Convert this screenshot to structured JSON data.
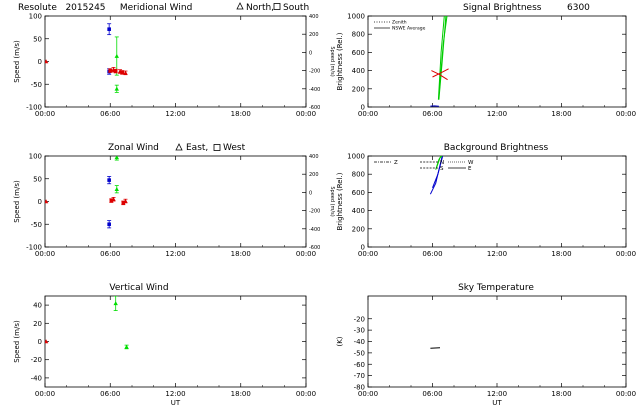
{
  "page_title": {
    "station": "Resolute",
    "date": "2015245",
    "sep": "   ",
    "subtitle": "Meridional Wind",
    "legend_a": "North,",
    "legend_b": "South"
  },
  "chart_data": [
    {
      "id": "meridional",
      "type": "scatter",
      "title": "",
      "xlabel": "",
      "ylabel": "Speed (m/s)",
      "xlim": [
        0,
        24
      ],
      "ylim": [
        -100,
        100
      ],
      "x_ticks": [
        "00:00",
        "06:00",
        "12:00",
        "18:00",
        "00:00"
      ],
      "y_ticks": [
        -100,
        -50,
        0,
        50,
        100
      ],
      "right_axis": {
        "label": "Speed (m/s)",
        "ticks": [
          -600,
          -400,
          -200,
          0,
          200,
          400
        ],
        "lim": [
          -600,
          400
        ]
      },
      "series": [
        {
          "color": "#0000cc",
          "marker": "square",
          "points": [
            [
              5.9,
              71,
              12
            ],
            [
              5.9,
              -22,
              6
            ]
          ]
        },
        {
          "color": "#00dd00",
          "marker": "triangle",
          "points": [
            [
              6.6,
              12,
              42
            ],
            [
              6.6,
              -60,
              8
            ]
          ]
        },
        {
          "color": "#dd0000",
          "marker": "triangle",
          "points": [
            [
              6.3,
              -18,
              5
            ],
            [
              6.9,
              -22,
              4
            ],
            [
              7.4,
              -25,
              4
            ]
          ]
        },
        {
          "color": "#dd0000",
          "marker": "square",
          "points": [
            [
              6.0,
              -20,
              4
            ],
            [
              6.5,
              -21,
              4
            ],
            [
              7.1,
              -24,
              4
            ]
          ]
        },
        {
          "color": "#dd0000",
          "marker": "triangle",
          "points": [
            [
              0.1,
              0,
              0
            ]
          ]
        }
      ]
    },
    {
      "id": "zonal",
      "type": "scatter",
      "title": "Zonal Wind",
      "legend_a": "East,",
      "legend_b": "West",
      "xlabel": "",
      "ylabel": "Speed (m/s)",
      "xlim": [
        0,
        24
      ],
      "ylim": [
        -100,
        100
      ],
      "x_ticks": [
        "00:00",
        "06:00",
        "12:00",
        "18:00",
        "00:00"
      ],
      "y_ticks": [
        -100,
        -50,
        0,
        50,
        100
      ],
      "right_axis": {
        "label": "Speed (m/s)",
        "ticks": [
          -600,
          -400,
          -200,
          0,
          200,
          400
        ],
        "lim": [
          -600,
          400
        ]
      },
      "series": [
        {
          "color": "#0000cc",
          "marker": "square",
          "points": [
            [
              5.9,
              47,
              8
            ],
            [
              5.9,
              -50,
              8
            ]
          ]
        },
        {
          "color": "#00dd00",
          "marker": "triangle",
          "points": [
            [
              6.6,
              97,
              6
            ],
            [
              6.6,
              27,
              8
            ]
          ]
        },
        {
          "color": "#dd0000",
          "marker": "triangle",
          "points": [
            [
              6.3,
              5,
              4
            ],
            [
              7.4,
              1,
              4
            ]
          ]
        },
        {
          "color": "#dd0000",
          "marker": "square",
          "points": [
            [
              6.1,
              2,
              4
            ],
            [
              7.2,
              -3,
              4
            ]
          ]
        },
        {
          "color": "#dd0000",
          "marker": "triangle",
          "points": [
            [
              0.1,
              0,
              0
            ]
          ]
        }
      ]
    },
    {
      "id": "vertical",
      "type": "scatter",
      "title": "Vertical Wind",
      "xlabel": "UT",
      "ylabel": "Speed (m/s)",
      "xlim": [
        0,
        24
      ],
      "ylim": [
        -50,
        50
      ],
      "x_ticks": [
        "00:00",
        "06:00",
        "12:00",
        "18:00",
        "00:00"
      ],
      "y_ticks": [
        -40,
        -20,
        0,
        20,
        40
      ],
      "series": [
        {
          "color": "#00dd00",
          "marker": "triangle",
          "points": [
            [
              6.5,
              42,
              8
            ],
            [
              7.5,
              -6,
              2
            ]
          ]
        },
        {
          "color": "#dd0000",
          "marker": "triangle",
          "points": [
            [
              0.1,
              0,
              0
            ]
          ]
        }
      ]
    },
    {
      "id": "signal",
      "type": "line",
      "title": "Signal Brightness",
      "title_right": "6300",
      "xlabel": "",
      "ylabel": "Brightness (Rel.)",
      "xlim": [
        0,
        24
      ],
      "ylim": [
        0,
        1000
      ],
      "x_ticks": [
        "00:00",
        "06:00",
        "12:00",
        "18:00",
        "00:00"
      ],
      "y_ticks": [
        0,
        200,
        400,
        600,
        800,
        1000
      ],
      "legend": [
        {
          "label": "Zenith",
          "style": "dotted"
        },
        {
          "label": "NSWE Average",
          "style": "solid"
        }
      ],
      "series": [
        {
          "color": "#00cc00",
          "points": [
            [
              6.55,
              80
            ],
            [
              6.8,
              600
            ],
            [
              7.1,
              1000
            ]
          ]
        },
        {
          "color": "#00cc00",
          "points": [
            [
              6.6,
              80
            ],
            [
              6.9,
              500
            ],
            [
              7.25,
              1000
            ]
          ]
        },
        {
          "color": "#00cc00",
          "points": [
            [
              6.65,
              200
            ],
            [
              7.0,
              700
            ],
            [
              7.35,
              1000
            ]
          ]
        },
        {
          "color": "#dd0000",
          "points": [
            [
              5.9,
              400
            ],
            [
              6.6,
              360
            ],
            [
              7.4,
              300
            ]
          ]
        },
        {
          "color": "#dd0000",
          "points": [
            [
              6.0,
              330
            ],
            [
              6.7,
              370
            ],
            [
              7.5,
              420
            ]
          ]
        },
        {
          "color": "#0000cc",
          "points": [
            [
              5.8,
              10
            ],
            [
              6.2,
              12
            ],
            [
              6.6,
              8
            ]
          ]
        }
      ]
    },
    {
      "id": "background",
      "type": "line",
      "title": "Background Brightness",
      "xlabel": "",
      "ylabel": "Brightness (Rel.)",
      "xlim": [
        0,
        24
      ],
      "ylim": [
        0,
        1000
      ],
      "x_ticks": [
        "00:00",
        "06:00",
        "12:00",
        "18:00",
        "00:00"
      ],
      "y_ticks": [
        0,
        200,
        400,
        600,
        800,
        1000
      ],
      "legend": [
        {
          "label": "Z",
          "style": "dashdot"
        },
        {
          "label": "N",
          "style": "dashed"
        },
        {
          "label": "S",
          "style": "dashed"
        },
        {
          "label": "W",
          "style": "dotted"
        },
        {
          "label": "E",
          "style": "solid"
        }
      ],
      "series": [
        {
          "color": "#0000cc",
          "points": [
            [
              5.8,
              580
            ],
            [
              6.3,
              700
            ],
            [
              6.9,
              1000
            ]
          ]
        },
        {
          "color": "#0000cc",
          "points": [
            [
              6.0,
              650
            ],
            [
              6.5,
              800
            ],
            [
              6.95,
              1000
            ]
          ]
        },
        {
          "color": "#00cc00",
          "points": [
            [
              6.3,
              850
            ],
            [
              6.6,
              960
            ],
            [
              6.8,
              1000
            ]
          ]
        },
        {
          "color": "#00cc00",
          "points": [
            [
              6.4,
              880
            ],
            [
              6.7,
              980
            ],
            [
              6.9,
              1000
            ]
          ]
        }
      ]
    },
    {
      "id": "skytemp",
      "type": "line",
      "title": "Sky Temperature",
      "xlabel": "UT",
      "ylabel": "(K)",
      "xlim": [
        0,
        24
      ],
      "ylim": [
        -80,
        0
      ],
      "x_ticks": [
        "00:00",
        "06:00",
        "12:00",
        "18:00",
        "00:00"
      ],
      "y_ticks": [
        -80,
        -70,
        -60,
        -50,
        -40,
        -30,
        -20
      ],
      "series": [
        {
          "color": "#000000",
          "points": [
            [
              5.8,
              -46
            ],
            [
              6.7,
              -45.5
            ]
          ]
        }
      ]
    }
  ]
}
